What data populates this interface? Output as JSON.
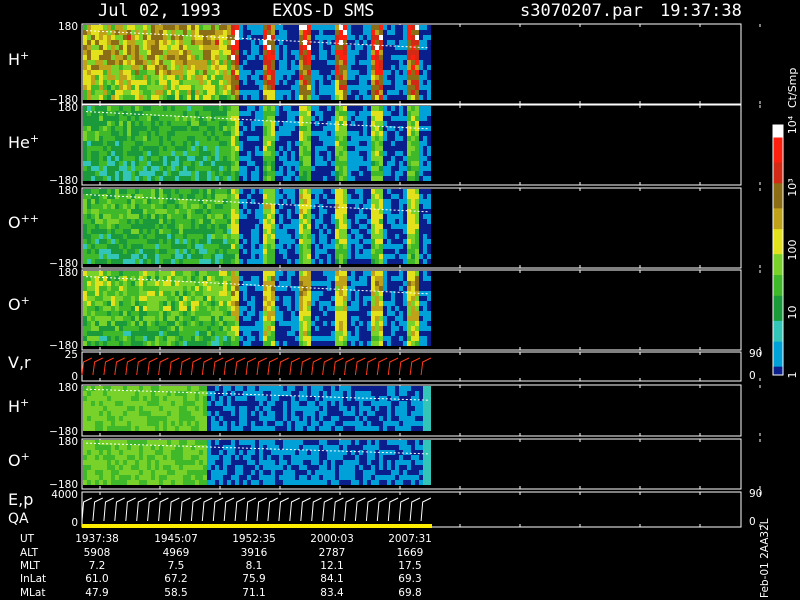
{
  "header": {
    "date": "Jul 02, 1993",
    "instrument": "EXOS-D SMS",
    "file": "s3070207.par",
    "time": "19:37:38"
  },
  "colors": {
    "background": "#000000",
    "axes": "#ffffff",
    "no_data": "#0a1f8c",
    "velocity_trace": "#ff3b1a",
    "qa_bar": "#ffee00"
  },
  "colorbar": {
    "unit": "Ct/Smp",
    "ticks": [
      "1",
      "10",
      "100",
      "10³",
      "10⁴"
    ],
    "scale": "log",
    "range": [
      1,
      10000
    ]
  },
  "side_label": "Feb-01 2AA32L",
  "chart_data": [
    {
      "type": "heatmap",
      "species": "H",
      "charge": "+",
      "ylim": [
        -180,
        180
      ],
      "yticks": [
        "180",
        "−180"
      ],
      "activity": 1.0,
      "coverage": "full"
    },
    {
      "type": "heatmap",
      "species": "He",
      "charge": "+",
      "ylim": [
        -180,
        180
      ],
      "yticks": [
        "180",
        "−180"
      ],
      "activity": 0.55,
      "coverage": "full"
    },
    {
      "type": "heatmap",
      "species": "O",
      "charge": "++",
      "ylim": [
        -180,
        180
      ],
      "yticks": [
        "180",
        "−180"
      ],
      "activity": 0.6,
      "coverage": "full"
    },
    {
      "type": "heatmap",
      "species": "O",
      "charge": "+",
      "ylim": [
        -180,
        180
      ],
      "yticks": [
        "180",
        "−180"
      ],
      "activity": 0.7,
      "coverage": "full"
    },
    {
      "type": "line",
      "label": "V,r",
      "ylim": [
        0,
        25
      ],
      "yticks_left": [
        "25",
        "0"
      ],
      "yticks_right": [
        "90",
        "0"
      ],
      "cycles": 32
    },
    {
      "type": "heatmap",
      "species": "H",
      "charge": "+",
      "ylim": [
        -180,
        180
      ],
      "yticks": [
        "180",
        "−180"
      ],
      "activity": 0.5,
      "coverage": "early"
    },
    {
      "type": "heatmap",
      "species": "O",
      "charge": "+",
      "ylim": [
        -180,
        180
      ],
      "yticks": [
        "180",
        "−180"
      ],
      "activity": 0.5,
      "coverage": "early"
    },
    {
      "type": "line",
      "label": "E,p",
      "label2": "QA",
      "ylim": [
        0,
        4000
      ],
      "yticks_left": [
        "4000",
        "0"
      ],
      "yticks_right": [
        "90",
        "0"
      ],
      "cycles": 32
    }
  ],
  "orbit_table": {
    "row_labels": [
      "UT",
      "ALT",
      "MLT",
      "InLat",
      "MLat"
    ],
    "columns": [
      [
        "1937:38",
        "5908",
        "7.2",
        "61.0",
        "47.9"
      ],
      [
        "1945:07",
        "4969",
        "7.5",
        "67.2",
        "58.5"
      ],
      [
        "1952:35",
        "3916",
        "8.1",
        "75.9",
        "71.1"
      ],
      [
        "2000:03",
        "2787",
        "12.1",
        "84.1",
        "83.4"
      ],
      [
        "2007:31",
        "1669",
        "17.5",
        "69.3",
        "69.8"
      ]
    ]
  }
}
